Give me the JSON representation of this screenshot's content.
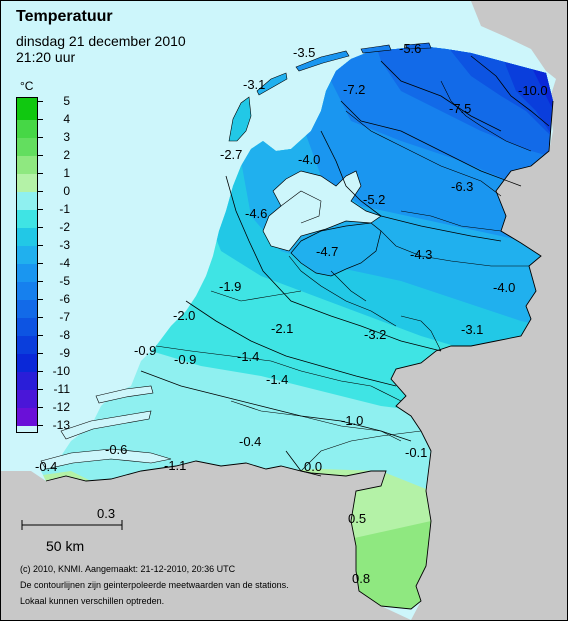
{
  "header": {
    "title": "Temperatuur",
    "date": "dinsdag 21 december 2010",
    "time": "21:20 uur"
  },
  "legend": {
    "unit": "°C",
    "entries": [
      {
        "label": "5",
        "color": "#10c810"
      },
      {
        "label": "4",
        "color": "#2dcf2d"
      },
      {
        "label": "3",
        "color": "#46d746"
      },
      {
        "label": "2",
        "color": "#63de5f"
      },
      {
        "label": "1",
        "color": "#8fe880"
      },
      {
        "label": "0",
        "color": "#b4f2a7"
      },
      {
        "label": "-1",
        "color": "#8ff0f0"
      },
      {
        "label": "-2",
        "color": "#3fe4e4"
      },
      {
        "label": "-3",
        "color": "#22c8e6"
      },
      {
        "label": "-4",
        "color": "#20b0ee"
      },
      {
        "label": "-5",
        "color": "#1a96f0"
      },
      {
        "label": "-6",
        "color": "#1680ee"
      },
      {
        "label": "-7",
        "color": "#126ae8"
      },
      {
        "label": "-8",
        "color": "#0d54e2"
      },
      {
        "label": "-9",
        "color": "#0a3edc"
      },
      {
        "label": "-10",
        "color": "#0a28d8"
      },
      {
        "label": "-11",
        "color": "#2a1ed8"
      },
      {
        "label": "-12",
        "color": "#4a16d8"
      },
      {
        "label": "-13",
        "color": "#6a10d8"
      }
    ]
  },
  "colors": {
    "sea": "#cdf6fb",
    "foreign_land": "#c8c8c8",
    "border": "#000000"
  },
  "stations": [
    {
      "value": "-3.5"
    },
    {
      "value": "-5.6"
    },
    {
      "value": "-3.1"
    },
    {
      "value": "-7.2"
    },
    {
      "value": "-7.5"
    },
    {
      "value": "-10.0"
    },
    {
      "value": "-2.7"
    },
    {
      "value": "-4.0"
    },
    {
      "value": "-6.3"
    },
    {
      "value": "-5.2"
    },
    {
      "value": "-4.6"
    },
    {
      "value": "-4.7"
    },
    {
      "value": "-4.3"
    },
    {
      "value": "-4.0"
    },
    {
      "value": "-1.9"
    },
    {
      "value": "-2.0"
    },
    {
      "value": "-2.1"
    },
    {
      "value": "-3.2"
    },
    {
      "value": "-3.1"
    },
    {
      "value": "-0.9"
    },
    {
      "value": "-0.9"
    },
    {
      "value": "-1.4"
    },
    {
      "value": "-1.4"
    },
    {
      "value": "-1.0"
    },
    {
      "value": "-0.6"
    },
    {
      "value": "-0.4"
    },
    {
      "value": "-0.1"
    },
    {
      "value": "-0.4"
    },
    {
      "value": "-1.1"
    },
    {
      "value": "0.0"
    },
    {
      "value": "0.3"
    },
    {
      "value": "0.5"
    },
    {
      "value": "0.8"
    }
  ],
  "scale": {
    "label": "50 km"
  },
  "footer": {
    "line1": "(c) 2010, KNMI. Aangemaakt: 21-12-2010, 20:36 UTC",
    "line2": "De contourlijnen zijn geinterpoleerde meetwaarden van de stations.",
    "line3": "Lokaal kunnen verschillen optreden."
  }
}
